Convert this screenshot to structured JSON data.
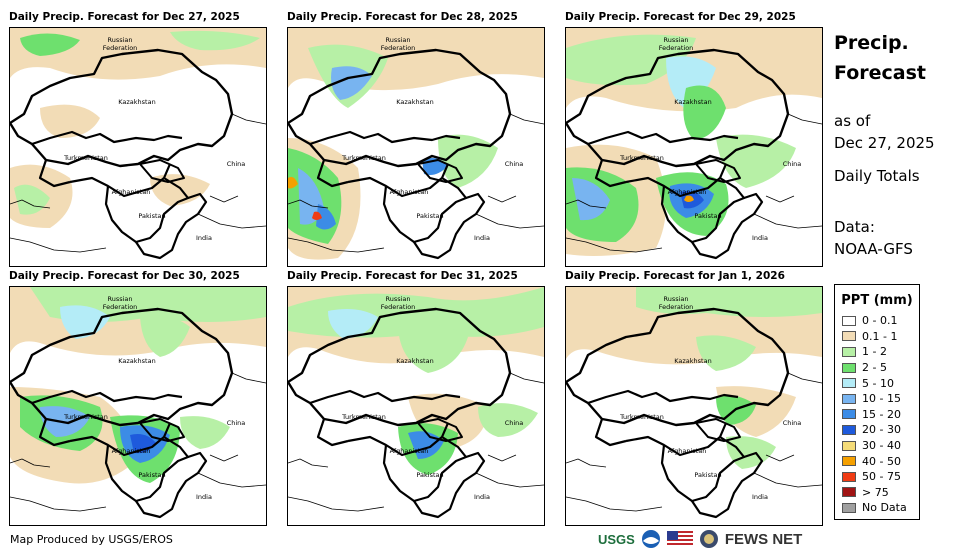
{
  "panels": [
    {
      "title": "Daily Precip. Forecast for Dec 27, 2025"
    },
    {
      "title": "Daily Precip. Forecast for Dec 28, 2025"
    },
    {
      "title": "Daily Precip. Forecast for Dec 29, 2025"
    },
    {
      "title": "Daily Precip. Forecast for Dec 30, 2025"
    },
    {
      "title": "Daily Precip. Forecast for Dec 31, 2025"
    },
    {
      "title": "Daily Precip. Forecast for Jan 1, 2026"
    }
  ],
  "map_labels": {
    "russia_line1": "Russian",
    "russia_line2": "Federation",
    "kazakhstan": "Kazakhstan",
    "turkmenistan": "Turkmenistan",
    "china": "China",
    "afghanistan": "Afghanistan",
    "pakistan": "Pakistan",
    "india": "India"
  },
  "side": {
    "title_line1": "Precip.",
    "title_line2": "Forecast",
    "asof_line1": "as of",
    "asof_line2": "Dec 27, 2025",
    "totals": "Daily Totals",
    "data_line1": "Data:",
    "data_line2": "NOAA-GFS"
  },
  "legend": {
    "title": "PPT (mm)",
    "items": [
      {
        "label": "0 - 0.1",
        "color": "#ffffff"
      },
      {
        "label": "0.1 - 1",
        "color": "#f2dcb6"
      },
      {
        "label": "1 - 2",
        "color": "#b7f0a6"
      },
      {
        "label": "2 - 5",
        "color": "#6ee06e"
      },
      {
        "label": "5 - 10",
        "color": "#b4ecf7"
      },
      {
        "label": "10 - 15",
        "color": "#78b4f0"
      },
      {
        "label": "15 - 20",
        "color": "#3c8ce6"
      },
      {
        "label": "20 - 30",
        "color": "#1e5adc"
      },
      {
        "label": "30 - 40",
        "color": "#f5dc78"
      },
      {
        "label": "40 - 50",
        "color": "#f5a000"
      },
      {
        "label": "50 - 75",
        "color": "#f03c14"
      },
      {
        "label": "> 75",
        "color": "#a01414"
      },
      {
        "label": "No Data",
        "color": "#a0a0a0"
      }
    ]
  },
  "footer": {
    "credit": "Map Produced by USGS/EROS",
    "usgs": "USGS",
    "fews": "FEWS NET"
  }
}
